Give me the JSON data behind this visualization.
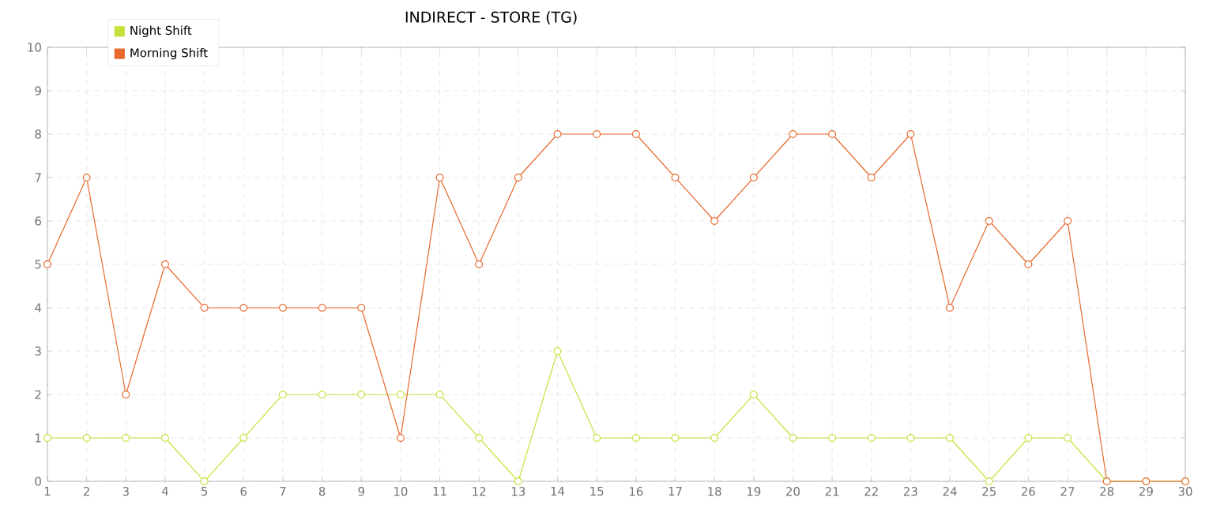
{
  "chart_data": {
    "type": "line",
    "title": "INDIRECT - STORE (TG)",
    "x": [
      1,
      2,
      3,
      4,
      5,
      6,
      7,
      8,
      9,
      10,
      11,
      12,
      13,
      14,
      15,
      16,
      17,
      18,
      19,
      20,
      21,
      22,
      23,
      24,
      25,
      26,
      27,
      28,
      29,
      30
    ],
    "series": [
      {
        "name": "Night Shift",
        "color": "#c8e03c",
        "values": [
          1,
          1,
          1,
          1,
          0,
          1,
          2,
          2,
          2,
          2,
          2,
          1,
          0,
          3,
          1,
          1,
          1,
          1,
          2,
          1,
          1,
          1,
          1,
          1,
          0,
          1,
          1,
          0,
          0,
          0
        ]
      },
      {
        "name": "Morning Shift",
        "color": "#e8692e",
        "values": [
          5,
          7,
          2,
          5,
          4,
          4,
          4,
          4,
          4,
          1,
          7,
          5,
          7,
          8,
          8,
          8,
          7,
          6,
          7,
          8,
          8,
          7,
          8,
          4,
          6,
          5,
          6,
          0,
          0,
          0
        ]
      }
    ],
    "xlim": [
      1,
      30
    ],
    "xticks": [
      1,
      2,
      3,
      4,
      5,
      6,
      7,
      8,
      9,
      10,
      11,
      12,
      13,
      14,
      15,
      16,
      17,
      18,
      19,
      20,
      21,
      22,
      23,
      24,
      25,
      26,
      27,
      28,
      29,
      30
    ],
    "ylim": [
      0,
      10
    ],
    "yticks": [
      0,
      1,
      2,
      3,
      4,
      5,
      6,
      7,
      8,
      9,
      10
    ],
    "grid": true,
    "legend": "top left",
    "marker": "circle",
    "line_style": "solid"
  }
}
